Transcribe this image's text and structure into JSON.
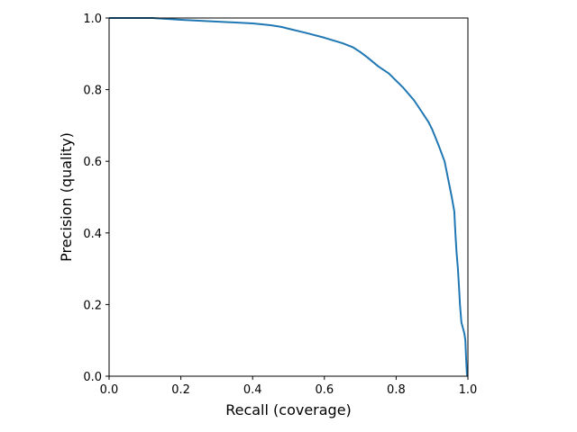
{
  "chart_data": {
    "type": "line",
    "title": "",
    "xlabel": "Recall (coverage)",
    "ylabel": "Precision (quality)",
    "xlim": [
      0,
      1
    ],
    "ylim": [
      0,
      1
    ],
    "xticks": [
      "0.0",
      "0.2",
      "0.4",
      "0.6",
      "0.8",
      "1.0"
    ],
    "yticks": [
      "0.0",
      "0.2",
      "0.4",
      "0.6",
      "0.8",
      "1.0"
    ],
    "grid": false,
    "legend": "none",
    "series": [
      {
        "color": "#1f77b4",
        "x": [
          0.0,
          0.1,
          0.12,
          0.2,
          0.3,
          0.4,
          0.45,
          0.48,
          0.5,
          0.55,
          0.6,
          0.65,
          0.68,
          0.7,
          0.72,
          0.75,
          0.78,
          0.8,
          0.82,
          0.85,
          0.87,
          0.89,
          0.9,
          0.91,
          0.92,
          0.935,
          0.945,
          0.955,
          0.962,
          0.965,
          0.968,
          0.972,
          0.975,
          0.978,
          0.982,
          0.99,
          0.993,
          0.995,
          0.997,
          0.998
        ],
        "y": [
          1.0,
          1.0,
          1.0,
          0.995,
          0.99,
          0.985,
          0.98,
          0.975,
          0.97,
          0.958,
          0.945,
          0.93,
          0.918,
          0.905,
          0.89,
          0.865,
          0.845,
          0.825,
          0.805,
          0.77,
          0.74,
          0.71,
          0.69,
          0.665,
          0.64,
          0.6,
          0.55,
          0.5,
          0.46,
          0.4,
          0.35,
          0.3,
          0.25,
          0.2,
          0.15,
          0.12,
          0.1,
          0.05,
          0.01,
          0.0
        ]
      }
    ]
  }
}
